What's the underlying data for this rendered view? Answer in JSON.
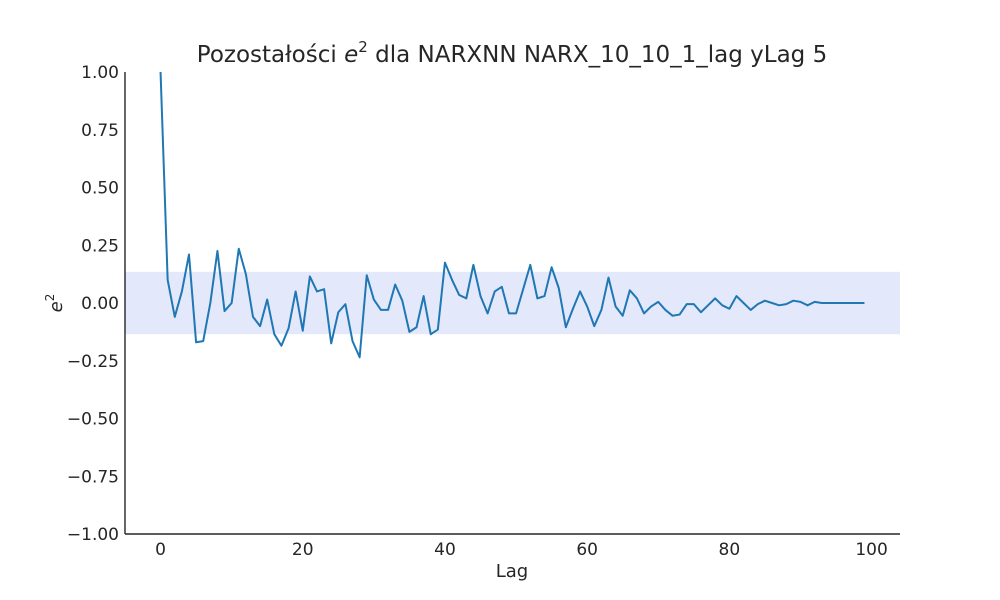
{
  "chart_data": {
    "type": "line",
    "title_prefix": "Pozostałości ",
    "title_symbol": "e",
    "title_exponent": "2",
    "title_suffix": " dla NARXNN NARX_10_10_1_lag yLag 5",
    "xlabel": "Lag",
    "ylabel_symbol": "e",
    "ylabel_exponent": "2",
    "xlim": [
      -5,
      104
    ],
    "ylim": [
      -1.0,
      1.0
    ],
    "x_ticks": [
      0,
      20,
      40,
      60,
      80,
      100
    ],
    "x_tick_labels": [
      "0",
      "20",
      "40",
      "60",
      "80",
      "100"
    ],
    "y_ticks": [
      1.0,
      0.75,
      0.5,
      0.25,
      0.0,
      -0.25,
      -0.5,
      -0.75,
      -1.0
    ],
    "y_tick_labels": [
      "1.00",
      "0.75",
      "0.50",
      "0.25",
      "0.00",
      "−0.25",
      "−0.50",
      "−0.75",
      "−1.00"
    ],
    "confidence_band": [
      -0.135,
      0.135
    ],
    "grid": false,
    "colors": {
      "line": "#1f77b4",
      "band": "#e3e8fb",
      "axis": "#262626",
      "text": "#262626"
    },
    "series": [
      {
        "x": [
          0,
          1,
          2,
          3,
          4,
          5,
          6,
          7,
          8,
          9,
          10,
          11,
          12,
          13,
          14,
          15,
          16,
          17,
          18,
          19,
          20,
          21,
          22,
          23,
          24,
          25,
          26,
          27,
          28,
          29,
          30,
          31,
          32,
          33,
          34,
          35,
          36,
          37,
          38,
          39,
          40,
          41,
          42,
          43,
          44,
          45,
          46,
          47,
          48,
          49,
          50,
          51,
          52,
          53,
          54,
          55,
          56,
          57,
          58,
          59,
          60,
          61,
          62,
          63,
          64,
          65,
          66,
          67,
          68,
          69,
          70,
          71,
          72,
          73,
          74,
          75,
          76,
          77,
          78,
          79,
          80,
          81,
          82,
          83,
          84,
          85,
          86,
          87,
          88,
          89,
          90,
          91,
          92,
          93,
          94,
          95,
          96,
          97,
          98,
          99
        ],
        "values": [
          1.0,
          0.1,
          -0.06,
          0.05,
          0.21,
          -0.17,
          -0.165,
          0.0,
          0.225,
          -0.035,
          0.0,
          0.235,
          0.125,
          -0.06,
          -0.1,
          0.015,
          -0.135,
          -0.185,
          -0.11,
          0.05,
          -0.12,
          0.115,
          0.05,
          0.06,
          -0.175,
          -0.04,
          -0.005,
          -0.165,
          -0.235,
          0.12,
          0.015,
          -0.03,
          -0.03,
          0.08,
          0.01,
          -0.125,
          -0.105,
          0.03,
          -0.135,
          -0.115,
          0.175,
          0.1,
          0.035,
          0.02,
          0.165,
          0.03,
          -0.045,
          0.05,
          0.07,
          -0.045,
          -0.045,
          0.06,
          0.165,
          0.02,
          0.03,
          0.155,
          0.065,
          -0.105,
          -0.025,
          0.05,
          -0.015,
          -0.1,
          -0.03,
          0.11,
          -0.015,
          -0.055,
          0.055,
          0.02,
          -0.045,
          -0.015,
          0.005,
          -0.03,
          -0.055,
          -0.05,
          -0.005,
          -0.005,
          -0.04,
          -0.01,
          0.02,
          -0.01,
          -0.025,
          0.03,
          0.0,
          -0.03,
          -0.005,
          0.01,
          0.0,
          -0.01,
          -0.005,
          0.01,
          0.005,
          -0.01,
          0.005,
          0.0,
          0.0,
          0.0,
          0.0,
          0.0,
          0.0,
          0.0
        ]
      }
    ]
  }
}
